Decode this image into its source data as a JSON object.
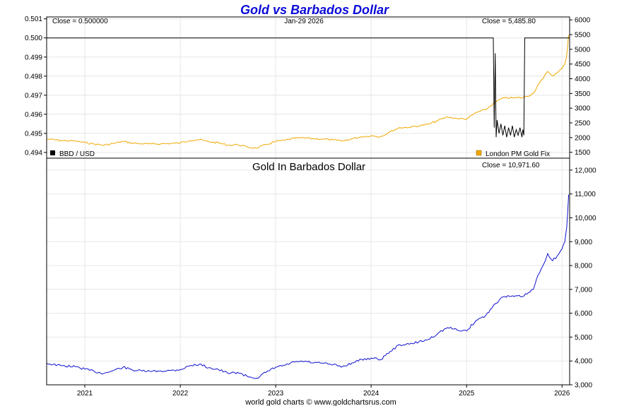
{
  "chart_data": [
    {
      "type": "line",
      "title": "Gold vs Barbados Dollar",
      "date_label": "Jan-29  2026",
      "left_axis": {
        "ylim": [
          0.4937,
          0.5011
        ],
        "ticks": [
          "0.494",
          "0.495",
          "0.496",
          "0.497",
          "0.498",
          "0.499",
          "0.500",
          "0.501"
        ],
        "tick_values": [
          0.494,
          0.495,
          0.496,
          0.497,
          0.498,
          0.499,
          0.5,
          0.501
        ]
      },
      "right_axis": {
        "ylim": [
          1300,
          6100
        ],
        "ticks": [
          "1500",
          "2000",
          "2500",
          "3000",
          "3500",
          "4000",
          "4500",
          "5000",
          "5500",
          "6000"
        ],
        "tick_values": [
          1500,
          2000,
          2500,
          3000,
          3500,
          4000,
          4500,
          5000,
          5500,
          6000
        ]
      },
      "x_ticks": [
        "2021",
        "2022",
        "2023",
        "2024",
        "2025",
        "2026"
      ],
      "x_tick_values": [
        2021.0,
        2022.0,
        2023.0,
        2024.0,
        2025.0,
        2026.0
      ],
      "xlim": [
        2020.6,
        2026.08
      ],
      "grid": true,
      "series": [
        {
          "name": "BBD / USD",
          "axis": "left",
          "color": "#000000",
          "close_label": "Close = 0.500000",
          "x": [
            2020.6,
            2025.28,
            2025.29,
            2025.3,
            2025.31,
            2025.32,
            2025.34,
            2025.36,
            2025.38,
            2025.4,
            2025.42,
            2025.44,
            2025.46,
            2025.48,
            2025.5,
            2025.52,
            2025.54,
            2025.56,
            2025.58,
            2025.59,
            2025.6,
            2025.61,
            2026.08
          ],
          "y": [
            0.5,
            0.5,
            0.4953,
            0.4992,
            0.4948,
            0.4957,
            0.495,
            0.4955,
            0.4949,
            0.4954,
            0.4948,
            0.4953,
            0.4949,
            0.4954,
            0.4948,
            0.4952,
            0.4949,
            0.4953,
            0.4948,
            0.4952,
            0.4949,
            0.5,
            0.5
          ]
        },
        {
          "name": "London PM Gold Fix",
          "axis": "right",
          "color": "#f0a800",
          "close_label": "Close = 5,485.80",
          "x": [
            2020.6,
            2020.75,
            2020.9,
            2021.0,
            2021.1,
            2021.2,
            2021.3,
            2021.4,
            2021.5,
            2021.6,
            2021.7,
            2021.8,
            2021.9,
            2022.0,
            2022.1,
            2022.2,
            2022.3,
            2022.4,
            2022.5,
            2022.6,
            2022.7,
            2022.8,
            2022.9,
            2023.0,
            2023.1,
            2023.2,
            2023.3,
            2023.4,
            2023.5,
            2023.6,
            2023.7,
            2023.8,
            2023.9,
            2024.0,
            2024.1,
            2024.2,
            2024.3,
            2024.4,
            2024.5,
            2024.6,
            2024.7,
            2024.8,
            2024.9,
            2025.0,
            2025.1,
            2025.2,
            2025.3,
            2025.35,
            2025.4,
            2025.5,
            2025.6,
            2025.7,
            2025.75,
            2025.8,
            2025.85,
            2025.9,
            2025.95,
            2026.0,
            2026.03,
            2026.05,
            2026.07
          ],
          "y": [
            1950,
            1900,
            1880,
            1830,
            1780,
            1740,
            1800,
            1870,
            1810,
            1790,
            1780,
            1790,
            1800,
            1820,
            1900,
            1930,
            1860,
            1820,
            1740,
            1760,
            1680,
            1640,
            1760,
            1870,
            1910,
            1980,
            1990,
            1960,
            1950,
            1920,
            1880,
            1960,
            2030,
            2060,
            2030,
            2200,
            2340,
            2350,
            2400,
            2450,
            2580,
            2700,
            2650,
            2630,
            2850,
            2950,
            3200,
            3300,
            3350,
            3350,
            3360,
            3500,
            3800,
            4000,
            4250,
            4100,
            4200,
            4350,
            4500,
            4800,
            5485.8
          ]
        }
      ],
      "legend": [
        "BBD / USD",
        "London PM Gold Fix"
      ],
      "legend_placement": "bottom"
    },
    {
      "type": "line",
      "title": "Gold In Barbados Dollar",
      "close_label": "Close = 10,971.60",
      "footer": "world gold charts © www.goldchartsrus.com",
      "x_ticks": [
        "2021",
        "2022",
        "2023",
        "2024",
        "2025",
        "2026"
      ],
      "x_tick_values": [
        2021.0,
        2022.0,
        2023.0,
        2024.0,
        2025.0,
        2026.0
      ],
      "xlim": [
        2020.6,
        2026.08
      ],
      "ylim": [
        3000,
        12500
      ],
      "y_ticks": [
        "3,000",
        "4,000",
        "5,000",
        "6,000",
        "7,000",
        "8,000",
        "9,000",
        "10,000",
        "11,000",
        "12,000"
      ],
      "y_tick_values": [
        3000,
        4000,
        5000,
        6000,
        7000,
        8000,
        9000,
        10000,
        11000,
        12000
      ],
      "grid": true,
      "series": [
        {
          "color": "#1010d0",
          "x": [
            2020.6,
            2020.75,
            2020.9,
            2021.0,
            2021.1,
            2021.2,
            2021.3,
            2021.4,
            2021.5,
            2021.6,
            2021.7,
            2021.8,
            2021.9,
            2022.0,
            2022.1,
            2022.2,
            2022.3,
            2022.4,
            2022.5,
            2022.6,
            2022.7,
            2022.8,
            2022.9,
            2023.0,
            2023.1,
            2023.2,
            2023.3,
            2023.4,
            2023.5,
            2023.6,
            2023.7,
            2023.8,
            2023.9,
            2024.0,
            2024.1,
            2024.2,
            2024.3,
            2024.4,
            2024.5,
            2024.6,
            2024.7,
            2024.8,
            2024.9,
            2025.0,
            2025.1,
            2025.2,
            2025.3,
            2025.35,
            2025.4,
            2025.5,
            2025.6,
            2025.7,
            2025.75,
            2025.8,
            2025.85,
            2025.9,
            2025.95,
            2026.0,
            2026.03,
            2026.05,
            2026.07
          ],
          "y": [
            3900,
            3800,
            3760,
            3660,
            3560,
            3480,
            3600,
            3740,
            3620,
            3580,
            3560,
            3580,
            3600,
            3640,
            3800,
            3860,
            3720,
            3640,
            3480,
            3520,
            3360,
            3280,
            3520,
            3740,
            3820,
            3960,
            3980,
            3920,
            3900,
            3840,
            3760,
            3920,
            4060,
            4120,
            4060,
            4400,
            4680,
            4700,
            4800,
            4900,
            5160,
            5400,
            5300,
            5260,
            5700,
            5900,
            6400,
            6600,
            6700,
            6700,
            6720,
            7000,
            7600,
            8000,
            8500,
            8200,
            8400,
            8700,
            9000,
            9600,
            10971.6
          ]
        }
      ]
    }
  ]
}
